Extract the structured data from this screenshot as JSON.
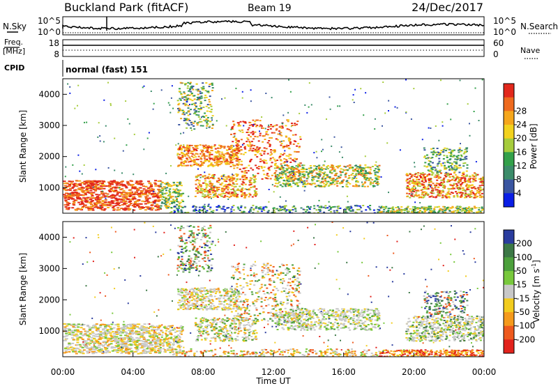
{
  "header": {
    "station": "Buckland Park (fitACF)",
    "beam": "Beam 19",
    "date": "24/Dec/2017"
  },
  "panels": {
    "nsky_label": "N.Sky",
    "nsearch_label": "N.Search",
    "freq_label_1": "Freq.",
    "freq_label_2": "[MHz]",
    "nave_label": "Nave",
    "cpid_label": "CPID",
    "cpid_value": "normal (fast) 151",
    "noise_left_ticks": [
      "10^5",
      "10^0"
    ],
    "noise_right_ticks": [
      "10^5",
      "10^0"
    ],
    "freq_left_ticks": [
      "18",
      "8"
    ],
    "freq_right_ticks": [
      "60",
      "0"
    ]
  },
  "chart_data": [
    {
      "type": "heatmap",
      "quantity": "Power",
      "xlabel": "",
      "ylabel": "Slant Range [km]",
      "xlim": [
        0,
        24
      ],
      "ylim": [
        180,
        4500
      ],
      "y_ticks": [
        "1000",
        "2000",
        "3000",
        "4000"
      ],
      "colorbar": {
        "label": "Power [dB]",
        "ticks": [
          "4",
          "8",
          "12",
          "16",
          "20",
          "24",
          "28"
        ],
        "colors": [
          "#0a1ee6",
          "#3a55a0",
          "#3c8c6a",
          "#33a04a",
          "#a6cc3c",
          "#f2d21e",
          "#f5a61c",
          "#ee6a1e",
          "#e2281c"
        ]
      }
    },
    {
      "type": "heatmap",
      "quantity": "Velocity",
      "xlabel": "Time UT",
      "ylabel": "Slant Range [km]",
      "xlim": [
        0,
        24
      ],
      "ylim": [
        180,
        4500
      ],
      "x_ticks": [
        "00:00",
        "04:00",
        "08:00",
        "12:00",
        "16:00",
        "20:00",
        "00:00"
      ],
      "y_ticks": [
        "1000",
        "2000",
        "3000",
        "4000"
      ],
      "colorbar": {
        "label_main": "Velocity [m s",
        "label_sup": "-1",
        "label_end": "]",
        "ticks": [
          "200",
          "100",
          "50",
          "15",
          "-15",
          "-50",
          "-100",
          "-200"
        ],
        "colors": [
          "#2a3c9e",
          "#3c7846",
          "#4ca03c",
          "#78c83c",
          "#c8c8c8",
          "#f2cc1e",
          "#f59a1c",
          "#ee5a1e",
          "#e2221c"
        ]
      }
    }
  ]
}
